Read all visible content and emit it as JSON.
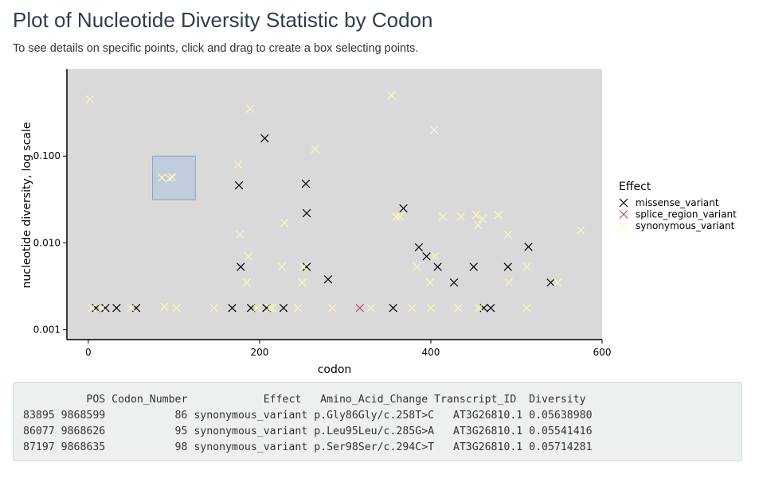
{
  "page": {
    "title": "Plot of Nucleotide Diversity Statistic by Codon",
    "subtitle": "To see details on specific points, click and drag to create a box selecting points."
  },
  "chart_data": {
    "type": "scatter",
    "title": "",
    "xlabel": "codon",
    "ylabel": "nucleotide diversity, log scale",
    "xlim": [
      -25,
      600
    ],
    "ylim": [
      0.00077,
      1.0
    ],
    "y_scale": "log",
    "x_ticks": [
      0,
      200,
      400,
      600
    ],
    "y_ticks": [
      0.001,
      0.01,
      0.1
    ],
    "y_tick_labels": [
      "0.001",
      "0.010",
      "0.100"
    ],
    "grid": false,
    "panel_background": "#d9d9d9",
    "legend": {
      "title": "Effect",
      "placement": "right"
    },
    "series": [
      {
        "name": "missense_variant",
        "color": "#000000",
        "marker": "x",
        "points": [
          [
            9,
            0.00178
          ],
          [
            20,
            0.00178
          ],
          [
            33,
            0.00178
          ],
          [
            56,
            0.00178
          ],
          [
            168,
            0.00178
          ],
          [
            176,
            0.046
          ],
          [
            178,
            0.0053
          ],
          [
            190,
            0.00178
          ],
          [
            206,
            0.16
          ],
          [
            208,
            0.00178
          ],
          [
            228,
            0.00178
          ],
          [
            254,
            0.048
          ],
          [
            255,
            0.0053
          ],
          [
            255,
            0.022
          ],
          [
            280,
            0.0038
          ],
          [
            356,
            0.00178
          ],
          [
            368,
            0.025
          ],
          [
            386,
            0.0089
          ],
          [
            395,
            0.007
          ],
          [
            408,
            0.0053
          ],
          [
            427,
            0.0035
          ],
          [
            450,
            0.0053
          ],
          [
            462,
            0.00178
          ],
          [
            470,
            0.00178
          ],
          [
            490,
            0.0053
          ],
          [
            514,
            0.009
          ],
          [
            540,
            0.0035
          ]
        ]
      },
      {
        "name": "splice_region_variant",
        "color": "#b3457c",
        "marker": "x",
        "points": [
          [
            317,
            0.00178
          ]
        ]
      },
      {
        "name": "synonymous_variant",
        "color": "#fff7b8",
        "marker": "x",
        "points": [
          [
            2,
            0.45
          ],
          [
            4,
            0.00178
          ],
          [
            16,
            0.00178
          ],
          [
            50,
            0.00178
          ],
          [
            86,
            0.05639
          ],
          [
            89,
            0.00185
          ],
          [
            95,
            0.05541
          ],
          [
            98,
            0.05714
          ],
          [
            103,
            0.00178
          ],
          [
            147,
            0.00178
          ],
          [
            175,
            0.08
          ],
          [
            177,
            0.0125
          ],
          [
            185,
            0.0035
          ],
          [
            187,
            0.007
          ],
          [
            189,
            0.35
          ],
          [
            197,
            0.00178
          ],
          [
            212,
            0.00178
          ],
          [
            215,
            0.00178
          ],
          [
            226,
            0.0053
          ],
          [
            229,
            0.017
          ],
          [
            245,
            0.00178
          ],
          [
            250,
            0.0035
          ],
          [
            251,
            0.0053
          ],
          [
            265,
            0.12
          ],
          [
            285,
            0.00178
          ],
          [
            330,
            0.00178
          ],
          [
            354,
            0.5
          ],
          [
            360,
            0.02
          ],
          [
            364,
            0.02
          ],
          [
            378,
            0.00178
          ],
          [
            384,
            0.0053
          ],
          [
            399,
            0.0035
          ],
          [
            400,
            0.00178
          ],
          [
            404,
            0.2
          ],
          [
            405,
            0.007
          ],
          [
            414,
            0.02
          ],
          [
            432,
            0.00178
          ],
          [
            435,
            0.02
          ],
          [
            453,
            0.021
          ],
          [
            455,
            0.016
          ],
          [
            456,
            0.00178
          ],
          [
            460,
            0.019
          ],
          [
            479,
            0.021
          ],
          [
            490,
            0.0125
          ],
          [
            491,
            0.0035
          ],
          [
            512,
            0.00178
          ],
          [
            512,
            0.0053
          ],
          [
            548,
            0.0035
          ],
          [
            575,
            0.014
          ]
        ]
      }
    ],
    "selection_box": {
      "x": [
        75,
        125
      ],
      "y": [
        0.0315,
        0.1
      ]
    }
  },
  "output": {
    "table_lines": [
      "          POS Codon_Number            Effect   Amino_Acid_Change Transcript_ID  Diversity",
      "83895 9868599           86 synonymous_variant p.Gly86Gly/c.258T>C   AT3G26810.1 0.05638980",
      "86077 9868626           95 synonymous_variant p.Leu95Leu/c.285G>A   AT3G26810.1 0.05541416",
      "87197 9868635           98 synonymous_variant p.Ser98Ser/c.294C>T   AT3G26810.1 0.05714281"
    ]
  }
}
